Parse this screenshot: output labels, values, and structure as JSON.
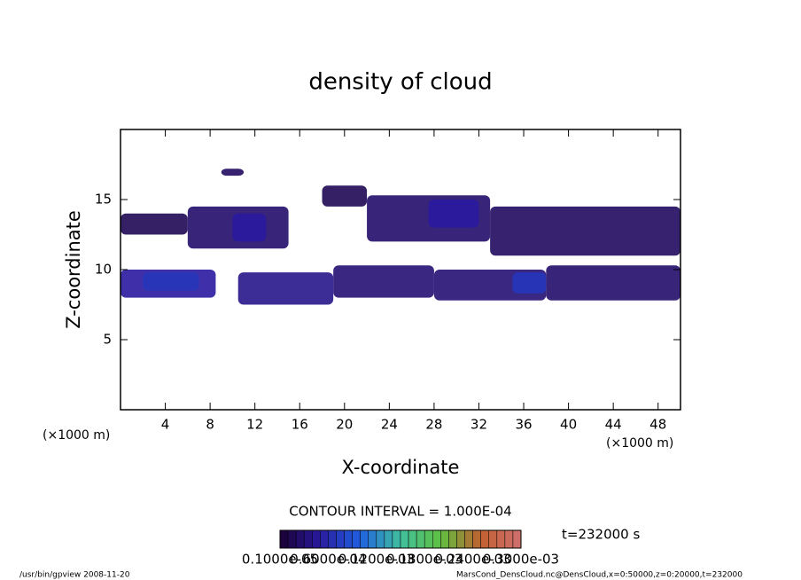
{
  "chart_data": {
    "type": "contour",
    "title": "density of cloud",
    "x_label": "X-coordinate",
    "y_label": "Z-coordinate",
    "x_unit": "(×1000 m)",
    "xlim": [
      0,
      50
    ],
    "ylim": [
      0,
      20
    ],
    "xticks": [
      4,
      8,
      12,
      16,
      20,
      24,
      28,
      32,
      36,
      40,
      44,
      48
    ],
    "yticks": [
      5,
      10,
      15
    ],
    "regions": [
      {
        "x": [
          0,
          8.5
        ],
        "z": [
          8,
          10
        ],
        "value": 5e-05
      },
      {
        "x": [
          10.5,
          19
        ],
        "z": [
          7.5,
          9.8
        ],
        "value": 4e-05
      },
      {
        "x": [
          19,
          28
        ],
        "z": [
          8,
          10.3
        ],
        "value": 3e-05
      },
      {
        "x": [
          28,
          38
        ],
        "z": [
          7.8,
          10
        ],
        "value": 3e-05
      },
      {
        "x": [
          38,
          50
        ],
        "z": [
          7.8,
          10.3
        ],
        "value": 2.5e-05
      },
      {
        "x": [
          0,
          6
        ],
        "z": [
          12.5,
          14
        ],
        "value": 1.5e-05
      },
      {
        "x": [
          6,
          15
        ],
        "z": [
          11.5,
          14.5
        ],
        "value": 2.5e-05
      },
      {
        "x": [
          10,
          13
        ],
        "z": [
          12,
          14
        ],
        "value": 5e-05
      },
      {
        "x": [
          18,
          22
        ],
        "z": [
          14.5,
          16
        ],
        "value": 1.5e-05
      },
      {
        "x": [
          22,
          33
        ],
        "z": [
          12,
          15.3
        ],
        "value": 2.5e-05
      },
      {
        "x": [
          27.5,
          32
        ],
        "z": [
          13,
          15
        ],
        "value": 5e-05
      },
      {
        "x": [
          33,
          50
        ],
        "z": [
          11,
          14.5
        ],
        "value": 2e-05
      },
      {
        "x": [
          9,
          11
        ],
        "z": [
          16.7,
          17.2
        ],
        "value": 2e-05
      },
      {
        "x": [
          2,
          7
        ],
        "z": [
          8.5,
          9.8
        ],
        "value": 7e-05
      },
      {
        "x": [
          35,
          38
        ],
        "z": [
          8.3,
          9.8
        ],
        "value": 7e-05
      }
    ],
    "colorbar": {
      "range": [
        0,
        0.0003
      ],
      "colors": [
        "#1a0033",
        "#2a1aa0",
        "#2060e0",
        "#40c0a0",
        "#60c040",
        "#c06030",
        "#d07070"
      ],
      "labels": [
        "0.1000e-05",
        "0.6000e-04",
        "0.1200e-03",
        "0.1800e-03",
        "0.2400e-03",
        "0.3000e-03"
      ]
    },
    "contour_interval": "CONTOUR INTERVAL = 1.000E-04",
    "time_label": "t=232000 s",
    "footer_left": "/usr/bin/gpview   2008-11-20",
    "footer_right": "MarsCond_DensCloud.nc@DensCloud,x=0:50000,z=0:20000,t=232000"
  }
}
